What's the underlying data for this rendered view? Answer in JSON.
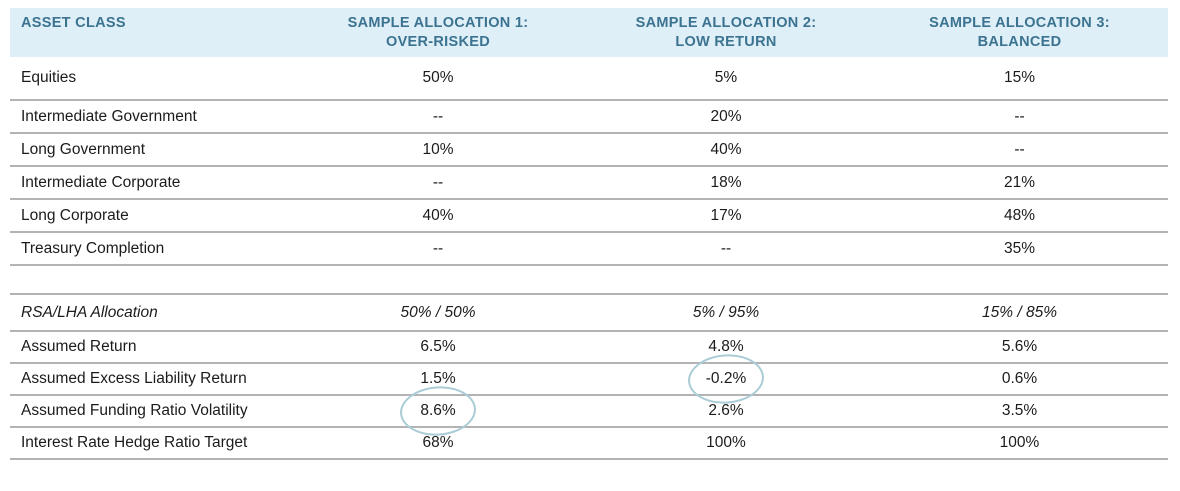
{
  "colors": {
    "header_bg": "#deeff8",
    "header_text": "#3b7390",
    "row_line": "#b3b3b3",
    "body_text": "#1b1b1b",
    "highlight_circle": "#a9ccd6"
  },
  "table": {
    "header": {
      "col0": "ASSET CLASS",
      "col1": {
        "line1": "SAMPLE ALLOCATION 1:",
        "line2": "OVER-RISKED"
      },
      "col2": {
        "line1": "SAMPLE ALLOCATION 2:",
        "line2": "LOW RETURN"
      },
      "col3": {
        "line1": "SAMPLE ALLOCATION 3:",
        "line2": "BALANCED"
      }
    },
    "asset_rows": [
      {
        "label": "Equities",
        "values": [
          "50%",
          "5%",
          "15%"
        ]
      },
      {
        "label": "Intermediate Government",
        "values": [
          "--",
          "20%",
          "--"
        ]
      },
      {
        "label": "Long Government",
        "values": [
          "10%",
          "40%",
          "--"
        ]
      },
      {
        "label": "Intermediate Corporate",
        "values": [
          "--",
          "18%",
          "21%"
        ]
      },
      {
        "label": "Long Corporate",
        "values": [
          "40%",
          "17%",
          "48%"
        ]
      },
      {
        "label": "Treasury Completion",
        "values": [
          "--",
          "--",
          "35%"
        ]
      }
    ],
    "summary_rows": [
      {
        "label": "RSA/LHA Allocation",
        "values": [
          "50% / 50%",
          "5% / 95%",
          "15% / 85%"
        ],
        "italic": true,
        "circled_col": null
      },
      {
        "label": "Assumed Return",
        "values": [
          "6.5%",
          "4.8%",
          "5.6%"
        ],
        "italic": false,
        "circled_col": null
      },
      {
        "label": "Assumed Excess Liability Return",
        "values": [
          "1.5%",
          "-0.2%",
          "0.6%"
        ],
        "italic": false,
        "circled_col": 1
      },
      {
        "label": "Assumed Funding Ratio Volatility",
        "values": [
          "8.6%",
          "2.6%",
          "3.5%"
        ],
        "italic": false,
        "circled_col": 0
      },
      {
        "label": "Interest Rate Hedge Ratio Target",
        "values": [
          "68%",
          "100%",
          "100%"
        ],
        "italic": false,
        "circled_col": null
      }
    ]
  }
}
